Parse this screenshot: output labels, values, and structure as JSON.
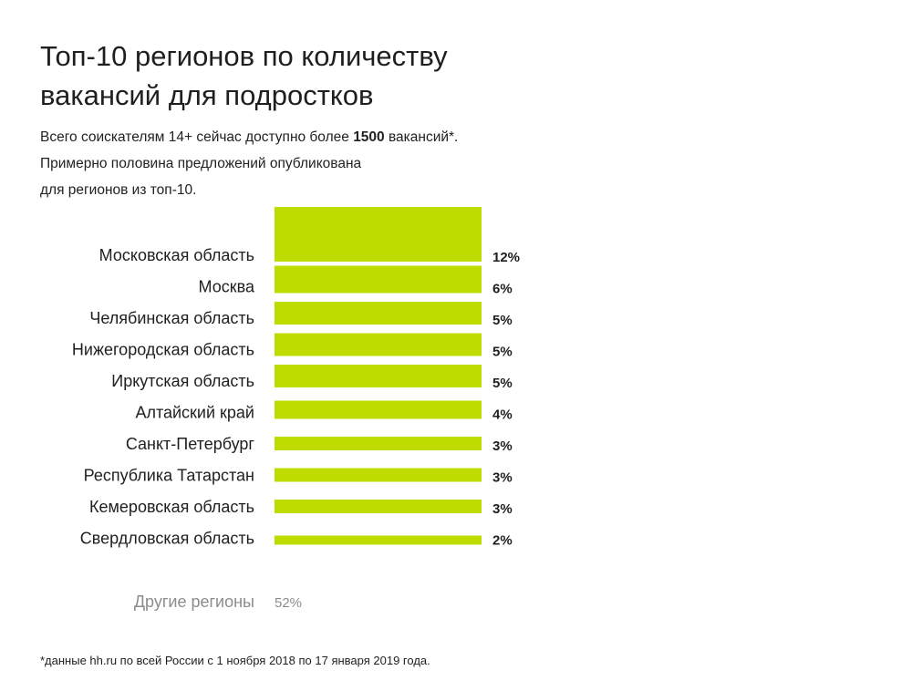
{
  "header": {
    "title_line1": "Топ-10 регионов по количеству",
    "title_line2": "вакансий для подростков"
  },
  "subtitle": {
    "line1_before": "Всего соискателям 14+ сейчас доступно более ",
    "line1_bold": "1500",
    "line1_after": " вакансий*.",
    "line2": "Примерно половина предложений опубликована",
    "line3": "для регионов из топ-10."
  },
  "chart_data": {
    "type": "bar",
    "orientation": "horizontal",
    "bar_encoding": "thickness",
    "categories": [
      "Московская область",
      "Москва",
      "Челябинская область",
      "Нижегородская область",
      "Иркутская область",
      "Алтайский край",
      "Санкт-Петербург",
      "Республика Татарстан",
      "Кемеровская область",
      "Свердловская область"
    ],
    "values": [
      12,
      6,
      5,
      5,
      5,
      4,
      3,
      3,
      3,
      2
    ],
    "value_labels": [
      "12%",
      "6%",
      "5%",
      "5%",
      "5%",
      "4%",
      "3%",
      "3%",
      "3%",
      "2%"
    ],
    "unit": "%",
    "bar_color": "#bfdc00",
    "other": {
      "label": "Другие регионы",
      "value": 52,
      "value_label": "52%"
    },
    "grid": false,
    "legend": "none"
  },
  "footnote": "*данные hh.ru по всей России с 1 ноября 2018 по 17 января 2019 года."
}
